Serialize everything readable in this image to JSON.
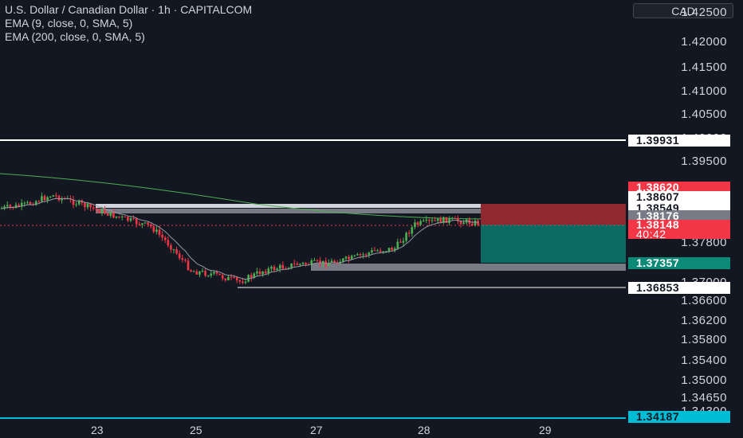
{
  "legend": {
    "title": "U.S. Dollar / Canadian Dollar · 1h · CAPITALCOM",
    "ema1": "EMA (9, close, 0, SMA, 5)",
    "ema2": "EMA (200, close, 0, SMA, 5)"
  },
  "currency": "CAD",
  "price_axis": [
    "1.42500",
    "1.42000",
    "1.41500",
    "1.41000",
    "1.40500",
    "1.40000",
    "1.39500",
    "1.37800",
    "1.37000",
    "1.36600",
    "1.36200",
    "1.35800",
    "1.35400",
    "1.35000",
    "1.34650",
    "1.34300"
  ],
  "price_tags": {
    "top_line": "1.39931",
    "red_top": "1.38620",
    "white1": "1.38607",
    "white2": "1.38549",
    "gray": "1.38176",
    "current": "1.38148",
    "countdown": "40:42",
    "green": "1.37357",
    "support": "1.36853",
    "bottom_line": "1.34187"
  },
  "time_axis": [
    "23",
    "25",
    "27",
    "28",
    "29"
  ],
  "colors": {
    "background": "#131722",
    "up": "#4caf50",
    "down": "#f23645",
    "profit_zone": "#0b6b63",
    "loss_zone": "#8e2a2f",
    "ema200": "#4caf50",
    "ema9": "#9598a1",
    "cyan_line": "#00bcd4"
  }
}
